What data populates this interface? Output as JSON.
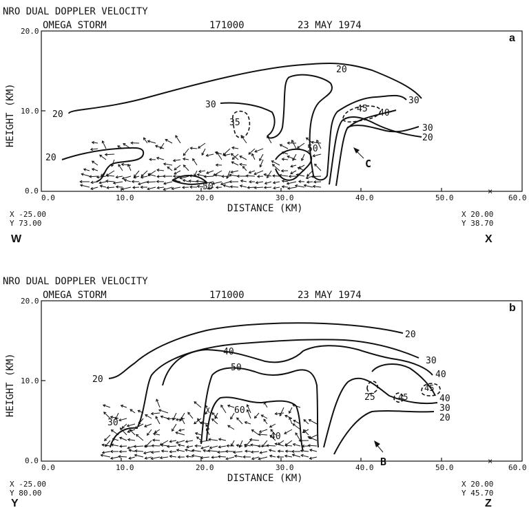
{
  "panels": [
    {
      "header": "NRO    DUAL DOPPLER VELOCITY",
      "storm": "OMEGA STORM",
      "time": "171000",
      "date": "23 MAY   1974",
      "panel_letter": "a",
      "y_axis_label": "HEIGHT (KM)",
      "x_axis_label": "DISTANCE  (KM)",
      "y_ticks": [
        "20.0",
        "10.0",
        "0.0"
      ],
      "x_ticks": [
        "0.0",
        "10.0",
        "20.0",
        "30.0",
        "40.0",
        "50.0",
        "60.0"
      ],
      "start_x": "X  -25.00",
      "start_y": "Y   73.00",
      "end_x": "X   20.00",
      "end_y": "Y   38.70",
      "start_point": "W",
      "end_point": "X",
      "contour_labels": [
        "20",
        "20",
        "20",
        "30",
        "30",
        "35",
        "45",
        "40",
        "30",
        "20",
        "50",
        "50"
      ],
      "annotation": "C"
    },
    {
      "header": "NRO    DUAL DOPPLER VELOCITY",
      "storm": "OMEGA STORM",
      "time": "171000",
      "date": "23 MAY   1974",
      "panel_letter": "b",
      "y_axis_label": "HEIGHT (KM)",
      "x_axis_label": "DISTANCE  (KM)",
      "y_ticks": [
        "20.0",
        "10.0",
        "0.0"
      ],
      "x_ticks": [
        "0.0",
        "10.0",
        "20.0",
        "30.0",
        "40.0",
        "50.0",
        "60.0"
      ],
      "start_x": "X  -25.00",
      "start_y": "Y   80.00",
      "end_x": "X   20.00",
      "end_y": "Y   45.70",
      "start_point": "Y",
      "end_point": "Z",
      "contour_labels": [
        "20",
        "30",
        "20",
        "40",
        "40",
        "50",
        "60",
        "30",
        "25",
        "45",
        "45",
        "40",
        "30",
        "20",
        "40"
      ],
      "annotation": "B"
    }
  ]
}
